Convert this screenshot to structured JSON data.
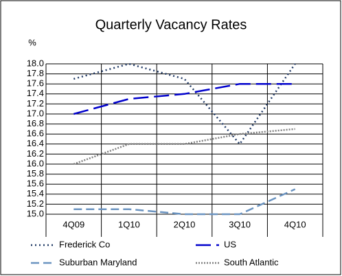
{
  "chart_data": {
    "type": "line",
    "title": "Quarterly Vacancy Rates",
    "y_label": "%",
    "categories": [
      "4Q09",
      "1Q10",
      "2Q10",
      "3Q10",
      "4Q10"
    ],
    "series": [
      {
        "name": "Frederick Co",
        "color": "#1f3864",
        "dash": "2,4",
        "values": [
          17.7,
          18.0,
          17.7,
          16.4,
          18.0
        ]
      },
      {
        "name": "US",
        "color": "#0000cc",
        "dash": "22,8",
        "values": [
          17.0,
          17.3,
          17.4,
          17.6,
          17.6
        ]
      },
      {
        "name": "Suburban Maryland",
        "color": "#6a93c0",
        "dash": "12,6",
        "values": [
          15.1,
          15.1,
          15.0,
          15.0,
          15.5
        ]
      },
      {
        "name": "South Atlantic",
        "color": "#7f7f7f",
        "dash": "2,2",
        "values": [
          16.0,
          16.4,
          16.4,
          16.6,
          16.7
        ]
      }
    ],
    "ylim": [
      15,
      18
    ],
    "yticks": [
      {
        "value": 15,
        "label": "15.0"
      },
      15.2,
      15.4,
      15.6,
      15.8,
      {
        "value": 16,
        "label": "16.0"
      },
      16.2,
      16.4,
      16.6,
      16.8,
      {
        "value": 17,
        "label": "17.0"
      },
      17.2,
      17.4,
      17.6,
      17.8,
      {
        "value": 18,
        "label": "18.0"
      }
    ],
    "grid": true
  }
}
